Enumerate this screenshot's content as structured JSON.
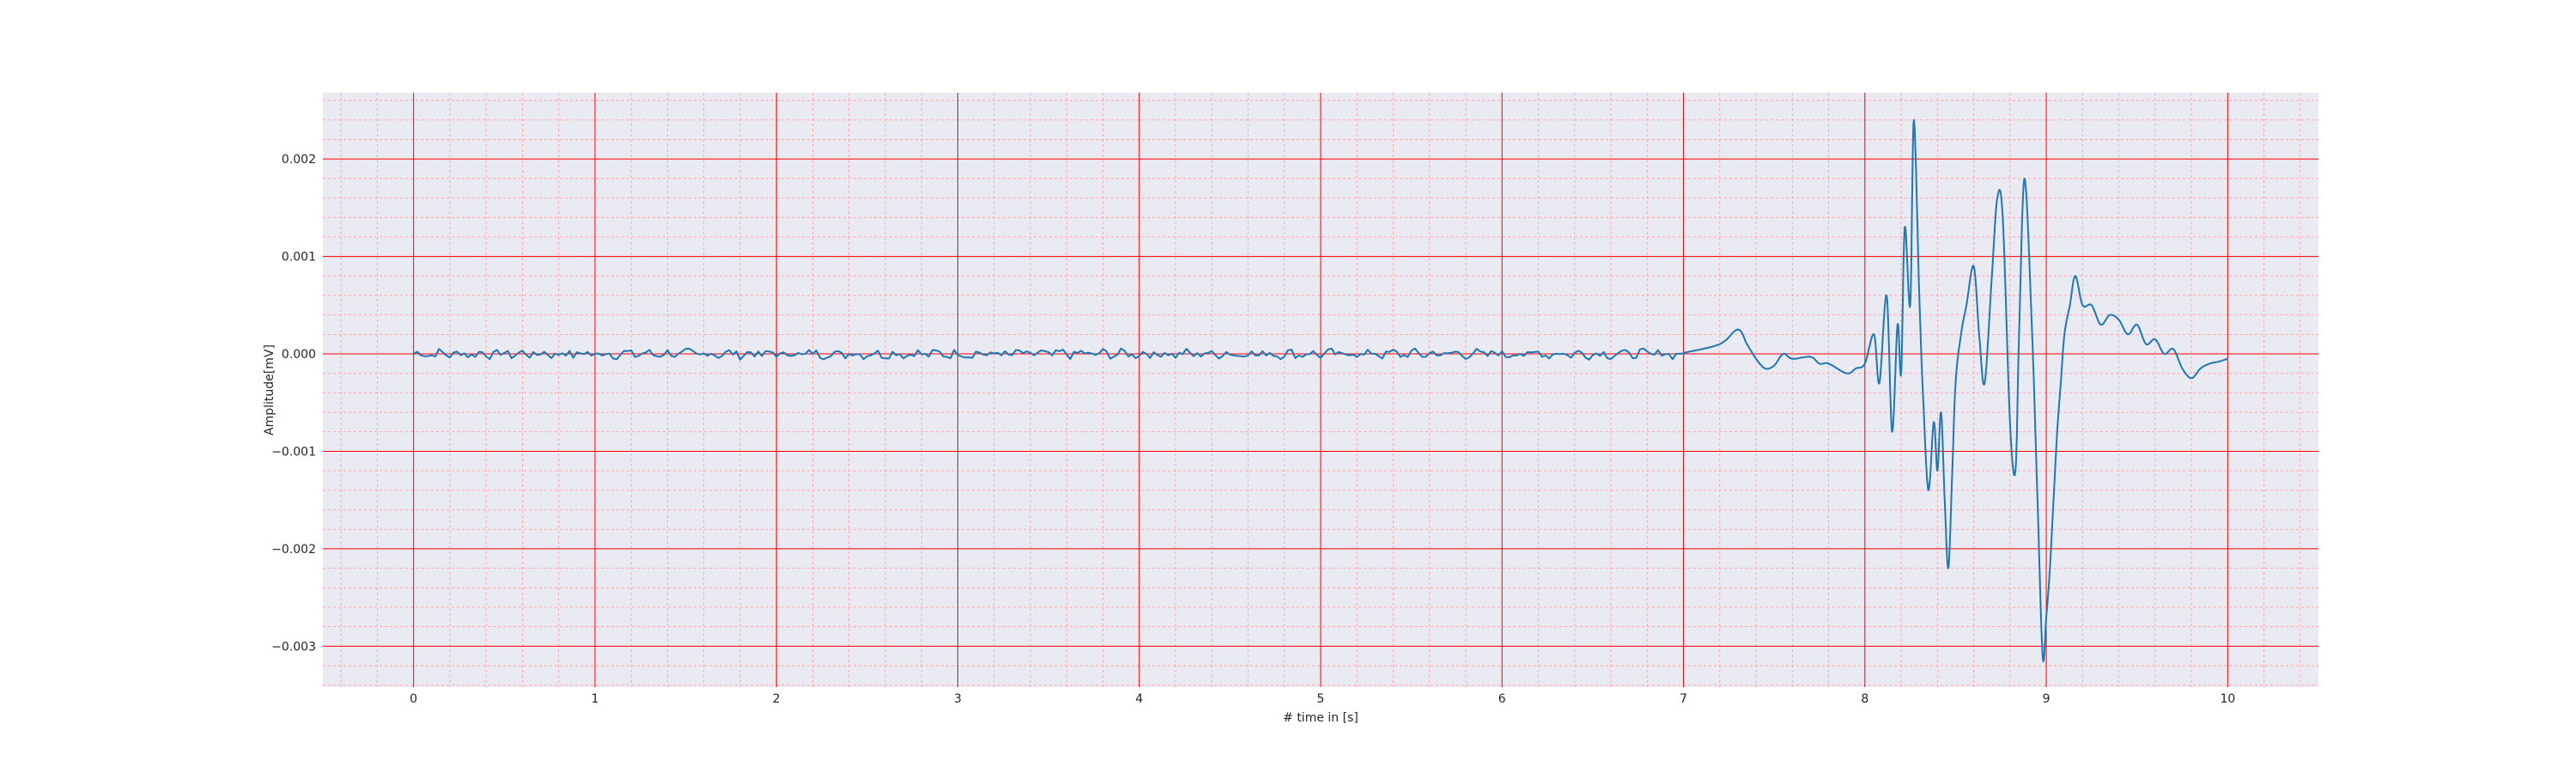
{
  "chart_data": {
    "type": "line",
    "title": "",
    "xlabel": "# time in [s]",
    "ylabel": "Amplitude[mV]",
    "xlim": [
      -0.5,
      10.5
    ],
    "ylim": [
      -0.00342,
      0.00268
    ],
    "xticks": [
      0,
      1,
      2,
      3,
      4,
      5,
      6,
      7,
      8,
      9,
      10
    ],
    "xtick_labels": [
      "0",
      "1",
      "2",
      "3",
      "4",
      "5",
      "6",
      "7",
      "8",
      "9",
      "10"
    ],
    "yticks": [
      0.002,
      0.001,
      0.0,
      -0.001,
      -0.002,
      -0.003
    ],
    "ytick_labels": [
      "0.002",
      "0.001",
      "0.000",
      "−0.001",
      "−0.002",
      "−0.003"
    ],
    "grid": true,
    "minor_grid": true,
    "colors": {
      "background": "#eaeaf2",
      "major_grid": "#ff0000",
      "minor_grid": "#ff9999",
      "line": "#1f77b4"
    },
    "series": [
      {
        "x": [
          0.0,
          7.0,
          7.2,
          7.3,
          7.35,
          7.4,
          7.45,
          7.5,
          7.55,
          7.6,
          7.7,
          7.75,
          7.8,
          7.9,
          7.95,
          8.0,
          8.05,
          8.08,
          8.12,
          8.15,
          8.18,
          8.2,
          8.22,
          8.25,
          8.27,
          8.3,
          8.32,
          8.35,
          8.38,
          8.4,
          8.42,
          8.44,
          8.46,
          8.48,
          8.5,
          8.53,
          8.56,
          8.6,
          8.63,
          8.66,
          8.7,
          8.73,
          8.76,
          8.8,
          8.83,
          8.85,
          8.88,
          8.92,
          8.95,
          8.98,
          9.0,
          9.02,
          9.04,
          9.06,
          9.08,
          9.1,
          9.13,
          9.16,
          9.2,
          9.25,
          9.3,
          9.35,
          9.4,
          9.45,
          9.5,
          9.55,
          9.6,
          9.65,
          9.7,
          9.75,
          9.8,
          9.85,
          9.9,
          9.95,
          10.0
        ],
        "y": [
          0.0,
          1e-05,
          0.0001,
          0.00025,
          0.0001,
          -5e-05,
          -0.00015,
          -0.00012,
          0.0,
          -5e-05,
          -3e-05,
          -0.0001,
          -0.0001,
          -0.0002,
          -0.00015,
          -0.0001,
          0.0002,
          -0.0003,
          0.0006,
          -0.0008,
          0.0003,
          -0.0002,
          0.0013,
          0.0005,
          0.0024,
          0.0006,
          -0.0004,
          -0.0014,
          -0.0007,
          -0.0012,
          -0.0006,
          -0.0015,
          -0.0022,
          -0.0013,
          -0.0003,
          0.0002,
          0.0005,
          0.0009,
          0.0002,
          -0.0003,
          0.0008,
          0.0016,
          0.0014,
          -0.0007,
          -0.0012,
          0.0002,
          0.0018,
          0.0003,
          -0.0014,
          -0.0031,
          -0.0027,
          -0.0022,
          -0.0015,
          -0.0008,
          -0.0003,
          0.0002,
          0.0005,
          0.0008,
          0.0005,
          0.0005,
          0.0003,
          0.0004,
          0.00035,
          0.0002,
          0.0003,
          0.0001,
          0.00015,
          0.0,
          5e-05,
          -0.00015,
          -0.00025,
          -0.00015,
          -0.0001,
          -8e-05,
          -5e-05
        ]
      }
    ]
  }
}
